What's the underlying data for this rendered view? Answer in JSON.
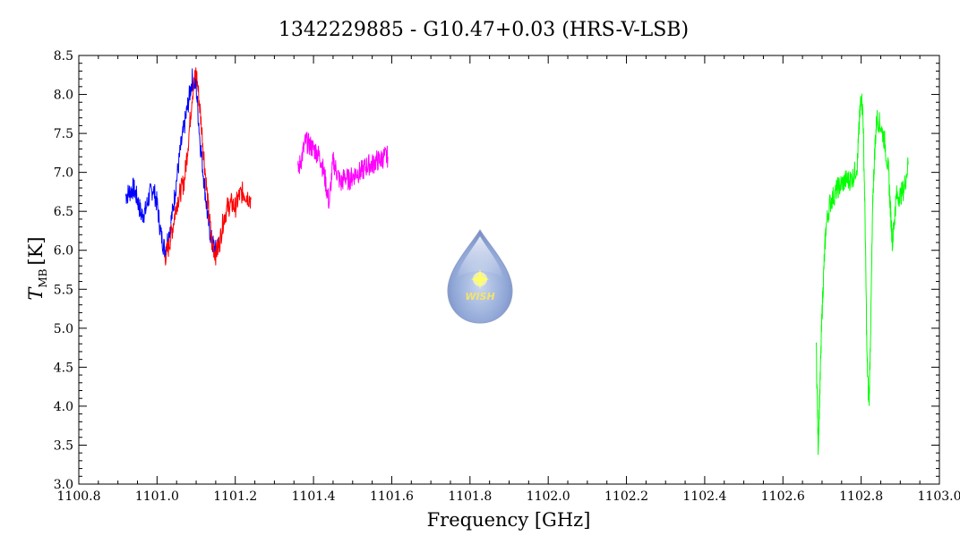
{
  "chart_data": {
    "type": "line",
    "title": "1342229885 - G10.47+0.03 (HRS-V-LSB)",
    "xlabel": "Frequency [GHz]",
    "ylabel_main": "T",
    "ylabel_sub": "MB",
    "ylabel_unit": "[K]",
    "xlim": [
      1100.8,
      1103.0
    ],
    "ylim": [
      3.0,
      8.5
    ],
    "xticks": [
      "1100.8",
      "1101.0",
      "1101.2",
      "1101.4",
      "1101.6",
      "1101.8",
      "1102.0",
      "1102.2",
      "1102.4",
      "1102.6",
      "1102.8",
      "1103.0"
    ],
    "yticks": [
      "3.0",
      "3.5",
      "4.0",
      "4.5",
      "5.0",
      "5.5",
      "6.0",
      "6.5",
      "7.0",
      "7.5",
      "8.0",
      "8.5"
    ],
    "grid": false,
    "logo_text": "WISH",
    "series": [
      {
        "color": "#0000ff",
        "x": [
          1100.92,
          1100.93,
          1100.94,
          1100.95,
          1100.96,
          1100.97,
          1100.98,
          1100.99,
          1101.0,
          1101.01,
          1101.02,
          1101.03,
          1101.04,
          1101.05,
          1101.06,
          1101.07,
          1101.08,
          1101.09,
          1101.1,
          1101.11,
          1101.12,
          1101.13,
          1101.14,
          1101.15,
          1101.16
        ],
        "y": [
          6.7,
          6.75,
          6.8,
          6.65,
          6.45,
          6.5,
          6.7,
          6.8,
          6.6,
          6.2,
          6.0,
          6.2,
          6.5,
          6.9,
          7.3,
          7.6,
          7.9,
          8.2,
          8.1,
          7.4,
          6.9,
          6.4,
          6.1,
          6.0,
          6.1
        ]
      },
      {
        "color": "#ff0000",
        "x": [
          1101.02,
          1101.03,
          1101.04,
          1101.05,
          1101.06,
          1101.07,
          1101.08,
          1101.09,
          1101.1,
          1101.11,
          1101.12,
          1101.13,
          1101.14,
          1101.15,
          1101.16,
          1101.17,
          1101.18,
          1101.19,
          1101.2,
          1101.21,
          1101.22,
          1101.23,
          1101.24
        ],
        "y": [
          5.9,
          6.05,
          6.3,
          6.6,
          6.75,
          6.9,
          7.4,
          8.0,
          8.3,
          7.8,
          7.2,
          6.6,
          6.1,
          5.95,
          6.1,
          6.4,
          6.55,
          6.6,
          6.55,
          6.7,
          6.75,
          6.7,
          6.65
        ]
      },
      {
        "color": "#ff00ff",
        "x": [
          1101.36,
          1101.37,
          1101.38,
          1101.39,
          1101.4,
          1101.41,
          1101.42,
          1101.43,
          1101.44,
          1101.45,
          1101.46,
          1101.47,
          1101.48,
          1101.49,
          1101.5,
          1101.51,
          1101.52,
          1101.53,
          1101.54,
          1101.55,
          1101.56,
          1101.57,
          1101.58,
          1101.59
        ],
        "y": [
          7.0,
          7.2,
          7.4,
          7.35,
          7.3,
          7.25,
          7.15,
          6.9,
          6.6,
          7.15,
          7.0,
          6.85,
          6.95,
          6.9,
          6.95,
          7.0,
          7.0,
          7.05,
          7.1,
          7.1,
          7.15,
          7.15,
          7.2,
          7.2
        ]
      },
      {
        "color": "#00ff00",
        "x": [
          1102.685,
          1102.69,
          1102.695,
          1102.7,
          1102.705,
          1102.71,
          1102.72,
          1102.73,
          1102.74,
          1102.75,
          1102.76,
          1102.77,
          1102.78,
          1102.79,
          1102.795,
          1102.8,
          1102.805,
          1102.81,
          1102.815,
          1102.82,
          1102.825,
          1102.83,
          1102.835,
          1102.84,
          1102.85,
          1102.86,
          1102.87,
          1102.875,
          1102.88,
          1102.885,
          1102.89,
          1102.9,
          1102.91,
          1102.92
        ],
        "y": [
          4.8,
          3.5,
          4.3,
          5.2,
          5.8,
          6.3,
          6.6,
          6.7,
          6.8,
          6.85,
          6.9,
          6.9,
          6.95,
          7.1,
          7.6,
          8.0,
          7.7,
          6.4,
          4.6,
          4.0,
          5.2,
          6.7,
          7.3,
          7.7,
          7.6,
          7.4,
          7.0,
          6.5,
          6.1,
          6.4,
          6.7,
          6.7,
          6.8,
          7.1
        ]
      }
    ]
  }
}
